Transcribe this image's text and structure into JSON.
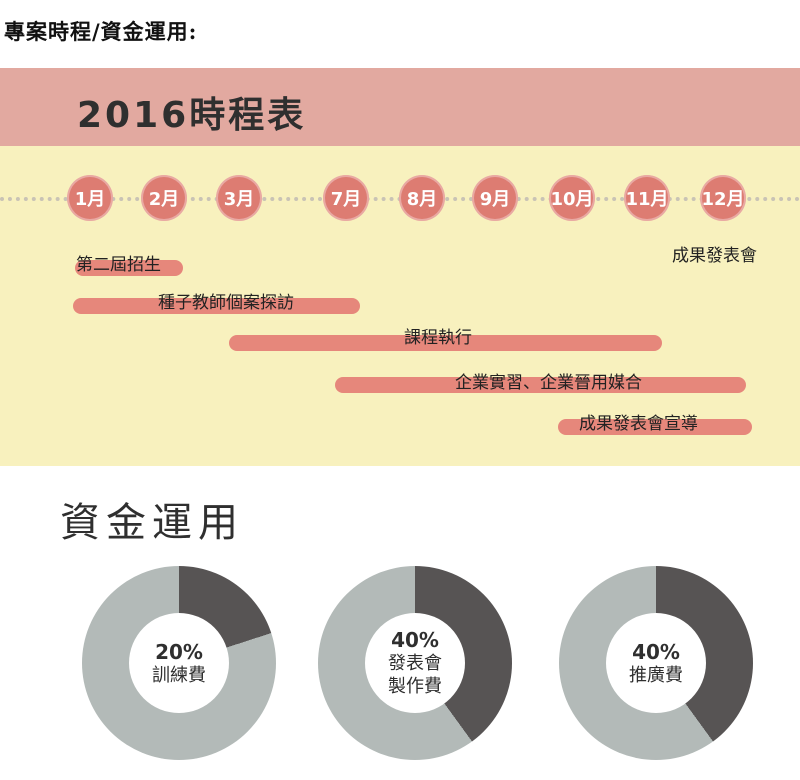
{
  "heading": "專案時程/資金運用:",
  "schedule": {
    "title": "2016時程表",
    "months": [
      "1月",
      "2月",
      "3月",
      "7月",
      "8月",
      "9月",
      "10月",
      "11月",
      "12月"
    ],
    "tasks": [
      {
        "label": "第二屆招生"
      },
      {
        "label": "種子教師個案探訪"
      },
      {
        "label": "課程執行"
      },
      {
        "label": "企業實習、企業晉用媒合"
      },
      {
        "label": "成果發表會宣導"
      },
      {
        "label": "成果發表會"
      }
    ]
  },
  "funding": {
    "title": "資金運用",
    "items": [
      {
        "percent": "20%",
        "label": "訓練費",
        "fraction": 0.2
      },
      {
        "percent": "40%",
        "label": "發表會製作費",
        "label_lines": [
          "發表會",
          "製作費"
        ],
        "fraction": 0.4
      },
      {
        "percent": "40%",
        "label": "推廣費",
        "fraction": 0.4
      }
    ]
  },
  "colors": {
    "banner": "#e2a9a0",
    "schedule_background": "#f8f1be",
    "month_circle": "#dd7c72",
    "bar": "#e6877b",
    "donut_dark": "#575454",
    "donut_light": "#b3bab8"
  }
}
